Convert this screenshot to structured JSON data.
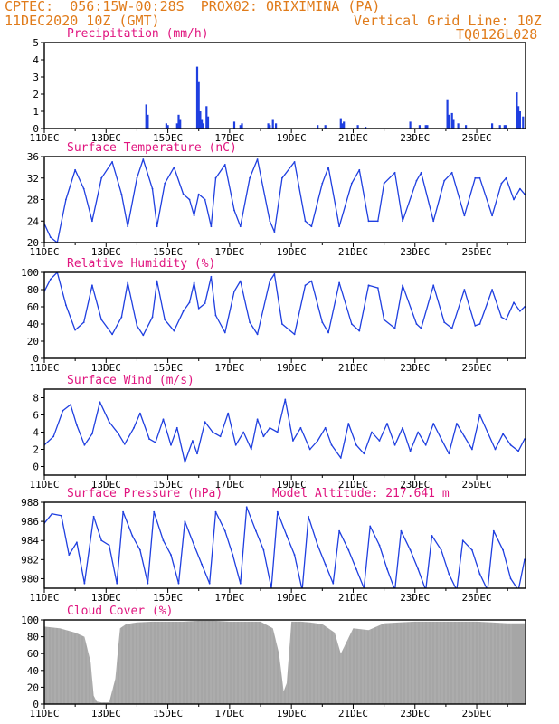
{
  "header": {
    "line1": "CPTEC:  056:15W-00:28S  PROX02: ORIXIMINA (PA)",
    "line2_left": "11DEC2020 10Z (GMT)",
    "line2_right": "Vertical Grid Line: 10Z",
    "line3_right": "TQ0126L028"
  },
  "colors": {
    "header": "#e07b1a",
    "title": "#e0157f",
    "series": "#1f3fe0",
    "cloud": "#a6a6a6",
    "axis": "#000000"
  },
  "x_tick_labels": [
    "11DEC",
    "13DEC",
    "15DEC",
    "17DEC",
    "19DEC",
    "21DEC",
    "23DEC",
    "25DEC"
  ],
  "chart_data": [
    {
      "type": "bar",
      "title": "Precipitation (mm/h)",
      "ylim": [
        0,
        5
      ],
      "yticks": [
        0,
        1,
        2,
        3,
        4,
        5
      ],
      "x": [
        3.3,
        3.35,
        3.95,
        4.0,
        4.3,
        4.35,
        4.4,
        4.95,
        5.0,
        5.05,
        5.1,
        5.15,
        5.25,
        5.3,
        6.15,
        6.35,
        6.4,
        7.25,
        7.3,
        7.4,
        7.5,
        8.85,
        9.1,
        9.6,
        9.65,
        9.7,
        10.15,
        10.4,
        11.85,
        12.15,
        12.35,
        12.4,
        13.05,
        13.1,
        13.2,
        13.25,
        13.4,
        13.65,
        14.5,
        14.75,
        14.9,
        14.95,
        15.3,
        15.35,
        15.4,
        15.5
      ],
      "values": [
        1.4,
        0.8,
        0.3,
        0.2,
        0.3,
        0.8,
        0.5,
        3.6,
        2.7,
        1.0,
        0.5,
        0.3,
        1.3,
        0.7,
        0.4,
        0.2,
        0.3,
        0.3,
        0.2,
        0.5,
        0.3,
        0.2,
        0.2,
        0.6,
        0.3,
        0.4,
        0.2,
        0.1,
        0.4,
        0.2,
        0.2,
        0.2,
        1.7,
        0.8,
        0.9,
        0.5,
        0.3,
        0.2,
        0.3,
        0.2,
        0.2,
        0.2,
        2.1,
        1.3,
        1.0,
        0.7
      ]
    },
    {
      "type": "line",
      "title": "Surface Temperature (nC)",
      "ylim": [
        20,
        36
      ],
      "yticks": [
        20,
        24,
        28,
        32,
        36
      ],
      "x": [
        0,
        0.2,
        0.42,
        0.7,
        1.0,
        1.28,
        1.55,
        1.85,
        2.2,
        2.5,
        2.7,
        3.0,
        3.2,
        3.5,
        3.65,
        3.9,
        4.2,
        4.5,
        4.7,
        4.85,
        5.0,
        5.2,
        5.4,
        5.55,
        5.85,
        6.15,
        6.35,
        6.65,
        6.9,
        7.3,
        7.45,
        7.7,
        8.1,
        8.45,
        8.65,
        9.0,
        9.2,
        9.55,
        9.95,
        10.2,
        10.5,
        10.8,
        11.0,
        11.35,
        11.6,
        12.05,
        12.2,
        12.6,
        12.95,
        13.2,
        13.6,
        13.95,
        14.1,
        14.5,
        14.8,
        14.95,
        15.2,
        15.4,
        15.55
      ],
      "values": [
        23.5,
        21,
        20,
        28,
        33.5,
        30,
        24,
        32,
        35,
        29,
        23,
        32,
        35.5,
        30,
        23,
        31,
        34,
        29,
        28,
        25,
        29,
        28,
        23,
        32,
        34.5,
        26,
        23,
        32,
        35.5,
        24,
        22,
        32,
        35,
        24,
        23,
        31,
        34,
        23,
        31,
        33.5,
        24,
        24,
        31,
        33,
        24,
        31.5,
        33,
        24,
        31.5,
        33,
        25,
        32,
        32,
        25,
        31,
        32,
        28,
        30,
        29
      ]
    },
    {
      "type": "line",
      "title": "Relative Humidity (%)",
      "ylim": [
        0,
        100
      ],
      "yticks": [
        0,
        20,
        40,
        60,
        80,
        100
      ],
      "x": [
        0,
        0.2,
        0.42,
        0.7,
        1.0,
        1.28,
        1.55,
        1.85,
        2.2,
        2.5,
        2.7,
        3.0,
        3.2,
        3.5,
        3.65,
        3.9,
        4.2,
        4.5,
        4.7,
        4.85,
        5.0,
        5.2,
        5.4,
        5.55,
        5.85,
        6.15,
        6.35,
        6.65,
        6.9,
        7.3,
        7.45,
        7.7,
        8.1,
        8.45,
        8.65,
        9.0,
        9.2,
        9.55,
        9.95,
        10.2,
        10.5,
        10.8,
        11.0,
        11.35,
        11.6,
        12.05,
        12.2,
        12.6,
        12.95,
        13.2,
        13.6,
        13.95,
        14.1,
        14.5,
        14.8,
        14.95,
        15.2,
        15.4,
        15.55
      ],
      "values": [
        78,
        92,
        100,
        62,
        33,
        42,
        85,
        45,
        28,
        48,
        88,
        38,
        27,
        48,
        90,
        45,
        32,
        55,
        65,
        88,
        58,
        64,
        95,
        50,
        30,
        78,
        90,
        42,
        28,
        90,
        98,
        40,
        28,
        85,
        90,
        42,
        30,
        88,
        40,
        32,
        85,
        82,
        45,
        35,
        85,
        40,
        35,
        85,
        42,
        35,
        80,
        38,
        40,
        80,
        48,
        45,
        65,
        55,
        60
      ]
    },
    {
      "type": "line",
      "title": "Surface Wind (m/s)",
      "ylim": [
        -1,
        9
      ],
      "yticks": [
        0,
        2,
        4,
        6,
        8
      ],
      "x": [
        0,
        0.3,
        0.6,
        0.85,
        1.05,
        1.3,
        1.55,
        1.8,
        2.1,
        2.4,
        2.6,
        2.9,
        3.1,
        3.4,
        3.6,
        3.85,
        4.1,
        4.3,
        4.55,
        4.8,
        4.95,
        5.2,
        5.45,
        5.7,
        5.95,
        6.2,
        6.45,
        6.7,
        6.9,
        7.1,
        7.3,
        7.55,
        7.8,
        8.05,
        8.3,
        8.6,
        8.85,
        9.1,
        9.3,
        9.6,
        9.85,
        10.1,
        10.35,
        10.6,
        10.85,
        11.1,
        11.35,
        11.6,
        11.85,
        12.1,
        12.35,
        12.6,
        12.85,
        13.1,
        13.35,
        13.6,
        13.85,
        14.1,
        14.35,
        14.6,
        14.85,
        15.1,
        15.35,
        15.55
      ],
      "values": [
        2.5,
        3.5,
        6.5,
        7.2,
        4.8,
        2.5,
        3.8,
        7.5,
        5.2,
        3.8,
        2.6,
        4.5,
        6.2,
        3.2,
        2.8,
        5.5,
        2.5,
        4.5,
        0.5,
        3.0,
        1.5,
        5.2,
        4.0,
        3.5,
        6.2,
        2.5,
        4.0,
        2.0,
        5.5,
        3.5,
        4.5,
        4.0,
        7.8,
        3.0,
        4.5,
        2.0,
        3.0,
        4.5,
        2.5,
        1.0,
        5.0,
        2.5,
        1.5,
        4.0,
        3.0,
        5.0,
        2.5,
        4.5,
        1.8,
        4.0,
        2.5,
        5.0,
        3.2,
        1.5,
        5.0,
        3.5,
        2.0,
        6.0,
        4.0,
        2.0,
        3.8,
        2.5,
        1.8,
        3.2
      ]
    },
    {
      "type": "line",
      "title": "Surface Pressure (hPa)",
      "annotation": "Model Altitude: 217.641 m",
      "ylim": [
        979,
        988
      ],
      "yticks": [
        980,
        982,
        984,
        986,
        988
      ],
      "x": [
        0,
        0.25,
        0.55,
        0.8,
        1.05,
        1.3,
        1.6,
        1.85,
        2.1,
        2.35,
        2.55,
        2.85,
        3.1,
        3.35,
        3.55,
        3.85,
        4.1,
        4.35,
        4.55,
        4.85,
        5.1,
        5.35,
        5.55,
        5.85,
        6.1,
        6.35,
        6.55,
        6.85,
        7.1,
        7.35,
        7.55,
        7.85,
        8.1,
        8.35,
        8.55,
        8.85,
        9.1,
        9.35,
        9.55,
        9.85,
        10.1,
        10.35,
        10.55,
        10.85,
        11.1,
        11.35,
        11.55,
        11.85,
        12.1,
        12.35,
        12.55,
        12.85,
        13.1,
        13.35,
        13.55,
        13.85,
        14.1,
        14.35,
        14.55,
        14.85,
        15.1,
        15.35,
        15.55
      ],
      "values": [
        985.8,
        986.8,
        986.6,
        982.5,
        983.8,
        979.5,
        986.5,
        984.0,
        983.5,
        979.5,
        987.0,
        984.5,
        983.0,
        979.5,
        987.0,
        984.0,
        982.5,
        979.5,
        986.0,
        983.5,
        981.5,
        979.5,
        987.0,
        985.0,
        982.5,
        979.5,
        987.5,
        985.0,
        983.0,
        979.0,
        987.0,
        984.5,
        982.5,
        978.8,
        986.5,
        983.5,
        981.5,
        979.5,
        985.0,
        983.0,
        981.0,
        979.0,
        985.5,
        983.5,
        981.0,
        978.8,
        985.0,
        983.0,
        981.0,
        978.8,
        984.5,
        983.0,
        980.5,
        978.8,
        984.0,
        983.0,
        980.5,
        978.8,
        985.0,
        983.0,
        980.0,
        978.8,
        982.0
      ]
    },
    {
      "type": "area",
      "title": "Cloud Cover (%)",
      "ylim": [
        0,
        100
      ],
      "yticks": [
        0,
        20,
        40,
        60,
        80,
        100
      ],
      "x": [
        0,
        0.5,
        1.0,
        1.3,
        1.5,
        1.6,
        1.7,
        1.85,
        2.1,
        2.3,
        2.45,
        2.65,
        3.0,
        3.5,
        4.0,
        4.5,
        5.0,
        5.5,
        6.0,
        6.5,
        7.0,
        7.4,
        7.6,
        7.75,
        7.85,
        8.0,
        8.3,
        8.6,
        9.0,
        9.4,
        9.6,
        10.0,
        10.5,
        11.0,
        11.5,
        12.0,
        12.5,
        13.0,
        13.5,
        14.0,
        14.5,
        15.0,
        15.55
      ],
      "values": [
        92,
        90,
        85,
        80,
        50,
        10,
        3,
        2,
        2,
        30,
        90,
        95,
        97,
        98,
        98,
        98,
        99,
        99,
        98,
        98,
        98,
        90,
        60,
        15,
        25,
        98,
        98,
        97,
        95,
        85,
        60,
        90,
        88,
        96,
        97,
        98,
        98,
        98,
        98,
        98,
        97,
        96,
        96
      ]
    }
  ]
}
